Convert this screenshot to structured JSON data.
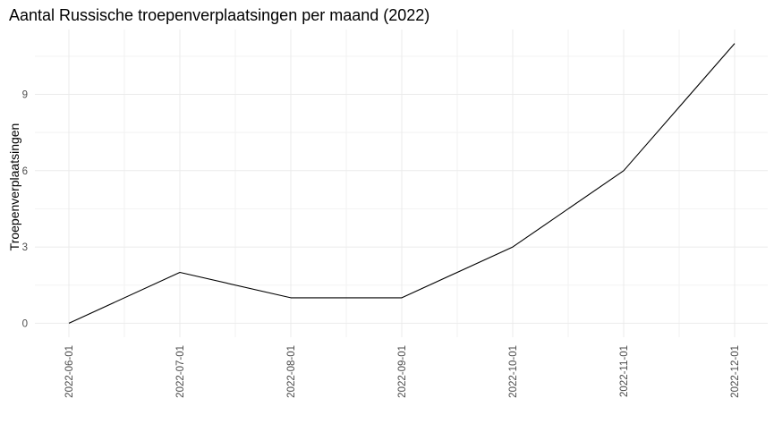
{
  "chart_data": {
    "type": "line",
    "title": "Aantal Russische troepenverplaatsingen per maand (2022)",
    "xlabel": "",
    "ylabel": "Troepenverplaatsingen",
    "x": [
      "2022-06-01",
      "2022-07-01",
      "2022-08-01",
      "2022-09-01",
      "2022-10-01",
      "2022-11-01",
      "2022-12-01"
    ],
    "series": [
      {
        "values": [
          0,
          2,
          1,
          1,
          3,
          6,
          11
        ]
      }
    ],
    "y_ticks": [
      0,
      3,
      6,
      9
    ],
    "ylim": [
      -0.55,
      11.55
    ],
    "grid": true,
    "line_color": "#000000",
    "theme": "minimal"
  }
}
